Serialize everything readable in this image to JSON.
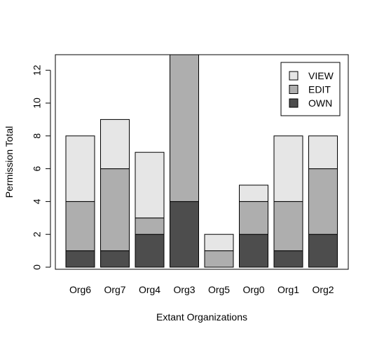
{
  "chart_data": {
    "type": "bar",
    "stacked": true,
    "title": "",
    "xlabel": "Extant Organizations",
    "ylabel": "Permission Total",
    "ylim": [
      0,
      13
    ],
    "yticks": [
      0,
      2,
      4,
      6,
      8,
      10,
      12
    ],
    "grid": false,
    "legend_position": "top-right",
    "categories": [
      "Org6",
      "Org7",
      "Org4",
      "Org3",
      "Org5",
      "Org0",
      "Org1",
      "Org2"
    ],
    "series": [
      {
        "name": "OWN",
        "color": "#4d4d4d",
        "values": [
          1,
          1,
          2,
          4,
          0,
          2,
          1,
          2
        ]
      },
      {
        "name": "EDIT",
        "color": "#aeaeae",
        "values": [
          3,
          5,
          1,
          9,
          1,
          2,
          3,
          4
        ]
      },
      {
        "name": "VIEW",
        "color": "#e6e6e6",
        "values": [
          4,
          3,
          4,
          0,
          1,
          1,
          4,
          2
        ]
      }
    ],
    "legend_order": [
      "VIEW",
      "EDIT",
      "OWN"
    ]
  }
}
